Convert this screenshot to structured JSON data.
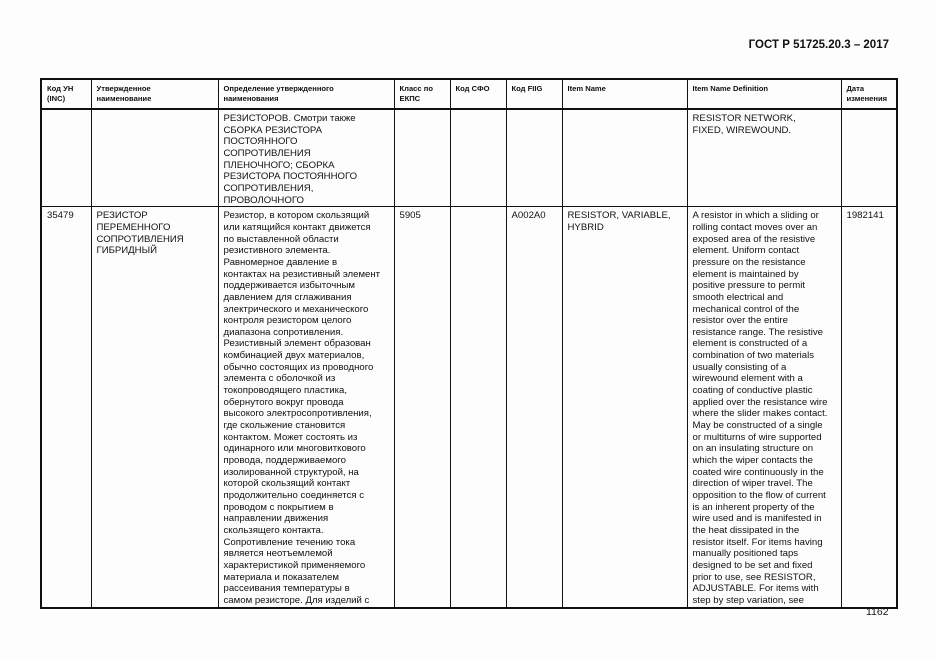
{
  "document": {
    "title": "ГОСТ Р 51725.20.3 – 2017",
    "page_number": "1162"
  },
  "table": {
    "headers": [
      "Код УН (INC)",
      "Утвержденное наименование",
      "Определение утвержденного наименования",
      "Класс по ЕКПС",
      "Код СФО",
      "Код FIIG",
      "Item Name",
      "Item Name Definition",
      "Дата изменения"
    ],
    "header_lines": [
      [
        "Код УН",
        "(INC)"
      ],
      [
        "Утвержденное",
        "наименование"
      ],
      [
        "Определение утвержденного",
        "наименования"
      ],
      [
        "Класс по",
        "ЕКПС"
      ],
      [
        "Код СФО"
      ],
      [
        "Код FIIG"
      ],
      [
        "Item Name"
      ],
      [
        "Item Name Definition"
      ],
      [
        "Дата",
        "изменения"
      ]
    ],
    "rows": [
      {
        "cells": [
          [],
          [],
          [
            "РЕЗИСТОРОВ. Смотри также",
            "СБОРКА РЕЗИСТОРА",
            "ПОСТОЯННОГО",
            "СОПРОТИВЛЕНИЯ",
            "ПЛЕНОЧНОГО; СБОРКА",
            "РЕЗИСТОРА ПОСТОЯННОГО",
            "СОПРОТИВЛЕНИЯ,",
            "ПРОВОЛОЧНОГО"
          ],
          [],
          [],
          [],
          [],
          [
            "RESISTOR NETWORK,",
            "FIXED, WIREWOUND."
          ],
          []
        ]
      },
      {
        "cells": [
          [
            "35479"
          ],
          [
            "РЕЗИСТОР",
            "ПЕРЕМЕННОГО",
            "СОПРОТИВЛЕНИЯ",
            "ГИБРИДНЫЙ"
          ],
          [
            "Резистор, в котором скользящий",
            "или катящийся контакт движется",
            "по выставленной области",
            "резистивного элемента.",
            "Равномерное давление в",
            "контактах на резистивный элемент",
            "поддерживается избыточным",
            "давлением для сглаживания",
            "электрического и механического",
            "контроля резистором целого",
            "диапазона сопротивления.",
            "Резистивный элемент образован",
            "комбинацией двух материалов,",
            "обычно состоящих из проводного",
            "элемента с оболочкой из",
            "токопроводящего пластика,",
            "обернутого вокруг провода",
            "высокого электросопротивления,",
            "где скольжение становится",
            "контактом. Может состоять из",
            "одинарного или многовиткового",
            "провода, поддерживаемого",
            "изолированной структурой, на",
            "которой скользящий контакт",
            "продолжительно соединяется с",
            "проводом с покрытием в",
            "направлении движения",
            "скользящего контакта.",
            "Сопротивление течению тока",
            "является неотъемлемой",
            "характеристикой применяемого",
            "материала и показателем",
            "рассеивания температуры в",
            "самом резисторе. Для изделий с"
          ],
          [
            "5905"
          ],
          [],
          [
            "A002A0"
          ],
          [
            "RESISTOR, VARIABLE,",
            "HYBRID"
          ],
          [
            "A resistor in which a sliding or",
            "rolling contact moves over an",
            "exposed area of the resistive",
            "element. Uniform contact",
            "pressure on the resistance",
            "element is maintained by",
            "positive pressure to permit",
            "smooth electrical and",
            "mechanical control of the",
            "resistor over the entire",
            "resistance range. The resistive",
            "element is constructed of a",
            "combination of two materials",
            "usually consisting of a",
            "wirewound element with a",
            "coating of conductive plastic",
            "applied over the resistance wire",
            "where the slider makes contact.",
            "May be constructed of a single",
            "or multiturns of wire supported",
            "on an insulating structure on",
            "which the wiper contacts the",
            "coated wire continuously in the",
            "direction of wiper travel. The",
            "opposition to the flow of current",
            "is an inherent property of the",
            "wire used and is manifested in",
            "the heat dissipated in the",
            "resistor itself. For items having",
            "manually positioned taps",
            "designed to be set and fixed",
            "prior to use, see RESISTOR,",
            "ADJUSTABLE. For items with",
            "step by step variation, see"
          ],
          [
            "1982141"
          ]
        ]
      }
    ]
  }
}
